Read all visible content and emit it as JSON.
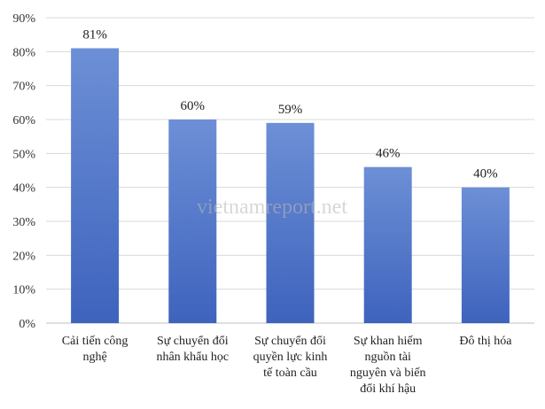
{
  "chart_data": {
    "type": "bar",
    "title": "",
    "xlabel": "",
    "ylabel": "",
    "ylim": [
      0,
      90
    ],
    "yticks": [
      "0%",
      "10%",
      "20%",
      "30%",
      "40%",
      "50%",
      "60%",
      "70%",
      "80%",
      "90%"
    ],
    "grid": true,
    "bar_color": "#4472c4",
    "categories": [
      [
        "Cải tiến công",
        "nghệ"
      ],
      [
        "Sự chuyển đổi",
        "nhân khẩu học"
      ],
      [
        "Sự chuyển đổi",
        "quyền lực kinh",
        "tế toàn cầu"
      ],
      [
        "Sự khan hiếm",
        "nguồn tài",
        "nguyên và biến",
        "đổi khí hậu"
      ],
      [
        "Đô thị hóa"
      ]
    ],
    "values": [
      81,
      60,
      59,
      46,
      40
    ],
    "data_labels": [
      "81%",
      "60%",
      "59%",
      "46%",
      "40%"
    ]
  },
  "watermark": "vietnamreport.net"
}
